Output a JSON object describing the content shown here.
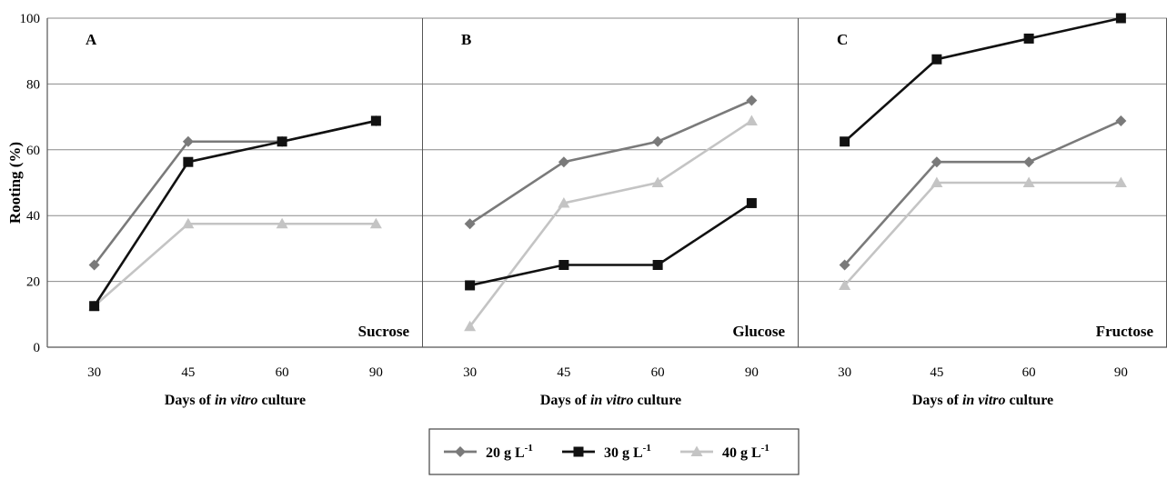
{
  "chart_data": [
    {
      "type": "line",
      "panel_label": "A",
      "annotation": "Sucrose",
      "categories": [
        "30",
        "45",
        "60",
        "90"
      ],
      "xlabel": {
        "prefix": "Days of ",
        "italic": "in vitro",
        "suffix": " culture"
      },
      "ylabel": "Rooting (%)",
      "ylim": [
        0,
        100
      ],
      "yticks": [
        "0",
        "20",
        "40",
        "60",
        "80",
        "100"
      ],
      "series": [
        {
          "name": "20 g L-1",
          "marker": "diamond",
          "color": "#7a7a7a",
          "values": [
            25,
            62.5,
            62.5,
            68.8
          ]
        },
        {
          "name": "30 g L-1",
          "marker": "square",
          "color": "#111111",
          "values": [
            12.5,
            56.3,
            62.5,
            68.8
          ]
        },
        {
          "name": "40 g L-1",
          "marker": "triangle",
          "color": "#c4c4c4",
          "values": [
            12.5,
            37.5,
            37.5,
            37.5
          ]
        }
      ]
    },
    {
      "type": "line",
      "panel_label": "B",
      "annotation": "Glucose",
      "categories": [
        "30",
        "45",
        "60",
        "90"
      ],
      "xlabel": {
        "prefix": "Days of ",
        "italic": "in vitro",
        "suffix": " culture"
      },
      "ylim": [
        0,
        100
      ],
      "series": [
        {
          "name": "20 g L-1",
          "marker": "diamond",
          "color": "#7a7a7a",
          "values": [
            37.5,
            56.3,
            62.5,
            75
          ]
        },
        {
          "name": "30 g L-1",
          "marker": "square",
          "color": "#111111",
          "values": [
            18.8,
            25,
            25,
            43.8
          ]
        },
        {
          "name": "40 g L-1",
          "marker": "triangle",
          "color": "#c4c4c4",
          "values": [
            6.3,
            43.8,
            50,
            68.8
          ]
        }
      ]
    },
    {
      "type": "line",
      "panel_label": "C",
      "annotation": "Fructose",
      "categories": [
        "30",
        "45",
        "60",
        "90"
      ],
      "xlabel": {
        "prefix": "Days of ",
        "italic": "in vitro",
        "suffix": " culture"
      },
      "ylim": [
        0,
        100
      ],
      "series": [
        {
          "name": "20 g L-1",
          "marker": "diamond",
          "color": "#7a7a7a",
          "values": [
            25,
            56.3,
            56.3,
            68.8
          ]
        },
        {
          "name": "30 g L-1",
          "marker": "square",
          "color": "#111111",
          "values": [
            62.5,
            87.5,
            93.8,
            100
          ]
        },
        {
          "name": "40 g L-1",
          "marker": "triangle",
          "color": "#c4c4c4",
          "values": [
            18.8,
            50,
            50,
            50
          ]
        }
      ]
    }
  ],
  "legend": {
    "items": [
      {
        "base": "20 g L",
        "sup": "-1",
        "marker": "diamond",
        "color": "#7a7a7a"
      },
      {
        "base": "30 g L",
        "sup": "-1",
        "marker": "square",
        "color": "#111111"
      },
      {
        "base": "40 g L",
        "sup": "-1",
        "marker": "triangle",
        "color": "#c4c4c4"
      }
    ],
    "placement": "bottom-center"
  },
  "grid": true
}
